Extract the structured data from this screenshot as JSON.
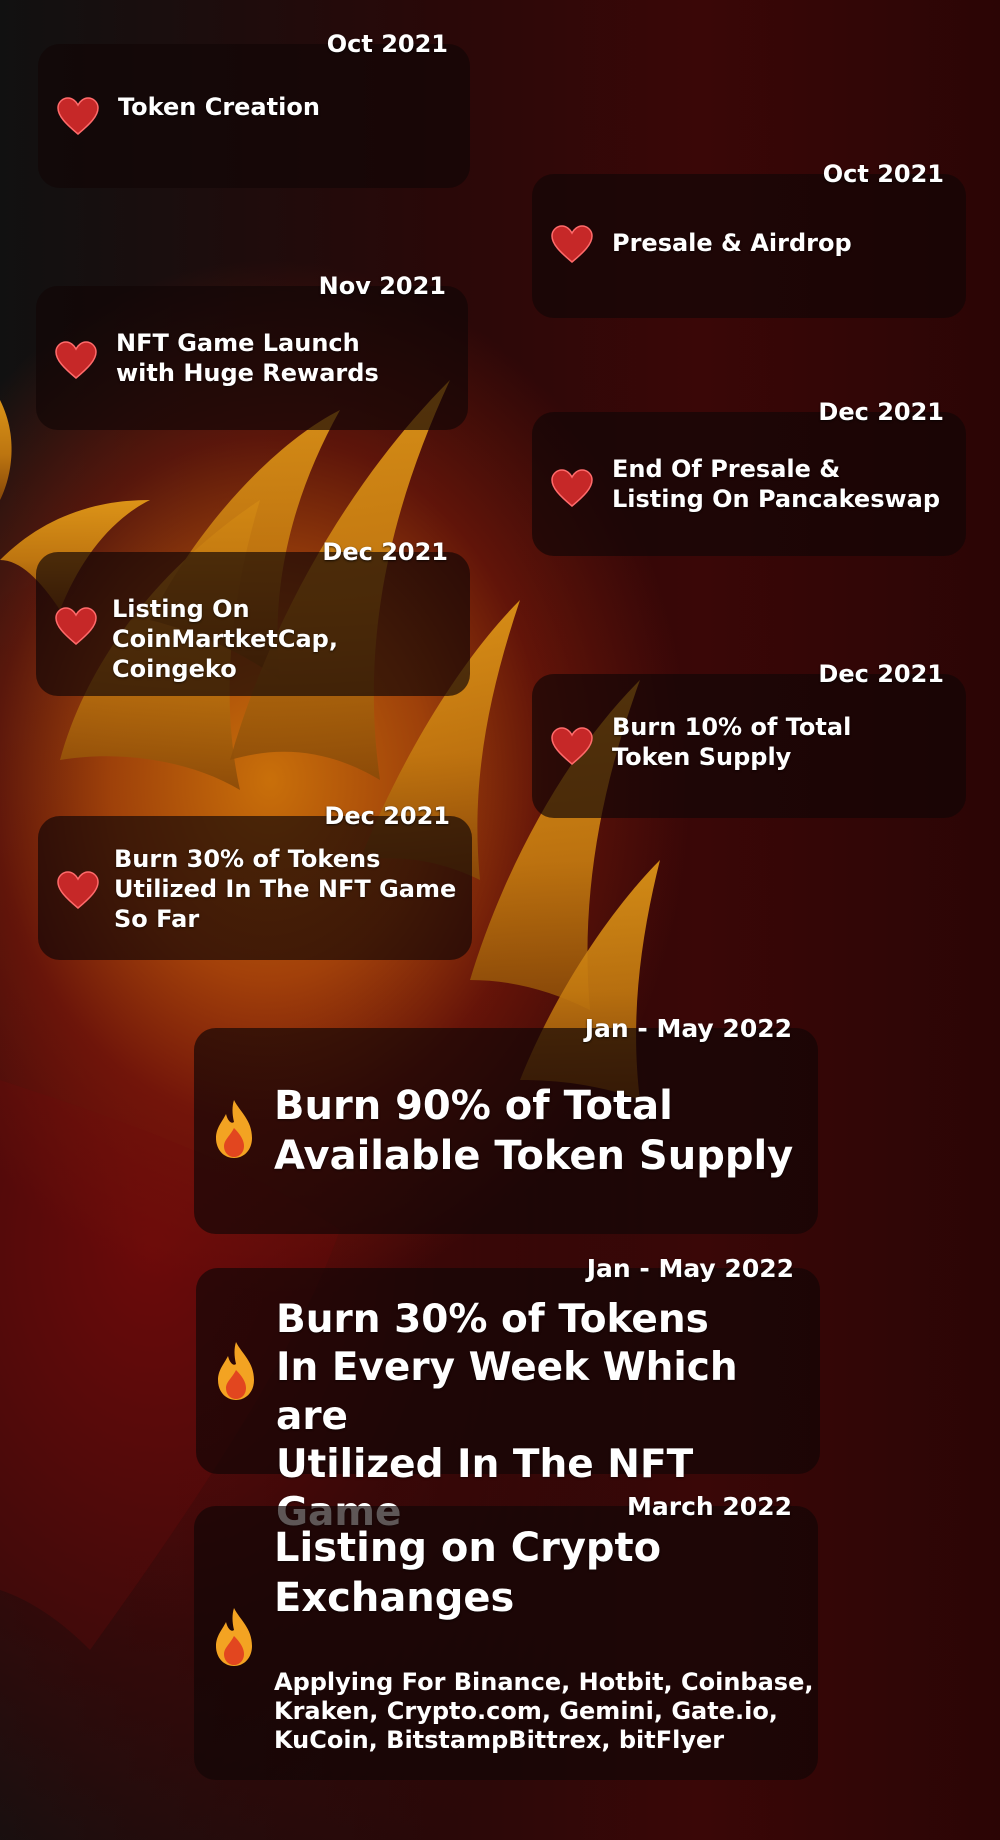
{
  "milestones": [
    {
      "date": "Oct 2021",
      "lines": [
        "Token Creation"
      ],
      "icon": "heart-icon"
    },
    {
      "date": "Oct 2021",
      "lines": [
        "Presale & Airdrop"
      ],
      "icon": "heart-icon"
    },
    {
      "date": "Nov 2021",
      "lines": [
        "NFT Game Launch",
        "with Huge Rewards"
      ],
      "icon": "heart-icon"
    },
    {
      "date": "Dec 2021",
      "lines": [
        "End Of Presale &",
        "Listing On Pancakeswap"
      ],
      "icon": "heart-icon"
    },
    {
      "date": "Dec 2021",
      "lines": [
        "Listing On CoinMartketCap,",
        "Coingeko"
      ],
      "icon": "heart-icon"
    },
    {
      "date": "Dec 2021",
      "lines": [
        "Burn 10% of  Total",
        "Token Supply"
      ],
      "icon": "heart-icon"
    },
    {
      "date": "Dec 2021",
      "lines": [
        "Burn 30% of  Tokens",
        "Utilized In The NFT Game",
        "So Far"
      ],
      "icon": "heart-icon"
    },
    {
      "date": "Jan - May 2022",
      "lines": [
        "Burn 90% of Total",
        "Available Token Supply"
      ],
      "icon": "flame-icon"
    },
    {
      "date": "Jan - May 2022",
      "lines": [
        "Burn 30% of  Tokens",
        "In Every Week Which are",
        "Utilized In The NFT Game"
      ],
      "icon": "flame-icon"
    },
    {
      "date": "March 2022",
      "lines": [
        "Listing on Crypto",
        "Exchanges"
      ],
      "description_lines": [
        "Applying For Binance, Hotbit, Coinbase,",
        "Kraken, Crypto.com, Gemini, Gate.io,",
        "KuCoin, BitstampBittrex, bitFlyer"
      ],
      "icon": "flame-icon"
    }
  ],
  "colors": {
    "card_bg": "#120606",
    "heart": "#c62828",
    "flame_orange": "#d98a1a",
    "text": "#ffffff"
  }
}
